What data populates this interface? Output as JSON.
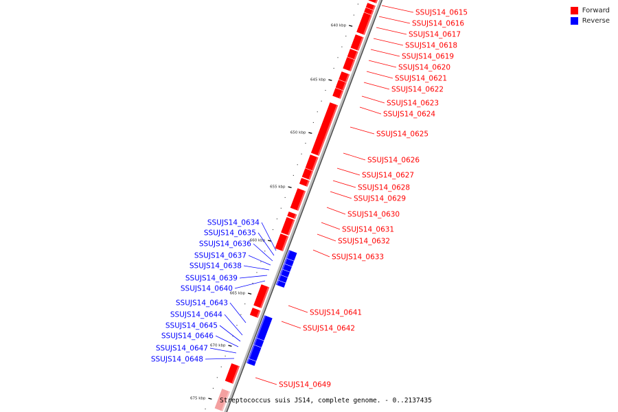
{
  "legend": [
    {
      "label": "Forward",
      "color": "#ff0000"
    },
    {
      "label": "Reverse",
      "color": "#0000ff"
    }
  ],
  "caption": "Streptococcus suis JS14, complete genome. - 0..2137435",
  "colors": {
    "forward": "#ff0000",
    "reverse": "#0000ff",
    "backbone": "#888888"
  },
  "tick_labels": [
    "640 kbp",
    "645 kbp",
    "650 kbp",
    "655 kbp",
    "660 kbp",
    "665 kbp",
    "670 kbp",
    "675 kbp"
  ],
  "forward_genes": [
    "SSUJS14_0615",
    "SSUJS14_0616",
    "SSUJS14_0617",
    "SSUJS14_0618",
    "SSUJS14_0619",
    "SSUJS14_0620",
    "SSUJS14_0621",
    "SSUJS14_0622",
    "SSUJS14_0623",
    "SSUJS14_0624",
    "SSUJS14_0625",
    "SSUJS14_0626",
    "SSUJS14_0627",
    "SSUJS14_0628",
    "SSUJS14_0629",
    "SSUJS14_0630",
    "SSUJS14_0631",
    "SSUJS14_0632",
    "SSUJS14_0633",
    "SSUJS14_0641",
    "SSUJS14_0642",
    "SSUJS14_0649"
  ],
  "reverse_genes": [
    "SSUJS14_0634",
    "SSUJS14_0635",
    "SSUJS14_0636",
    "SSUJS14_0637",
    "SSUJS14_0638",
    "SSUJS14_0639",
    "SSUJS14_0640",
    "SSUJS14_0643",
    "SSUJS14_0644",
    "SSUJS14_0645",
    "SSUJS14_0646",
    "SSUJS14_0647",
    "SSUJS14_0648"
  ]
}
